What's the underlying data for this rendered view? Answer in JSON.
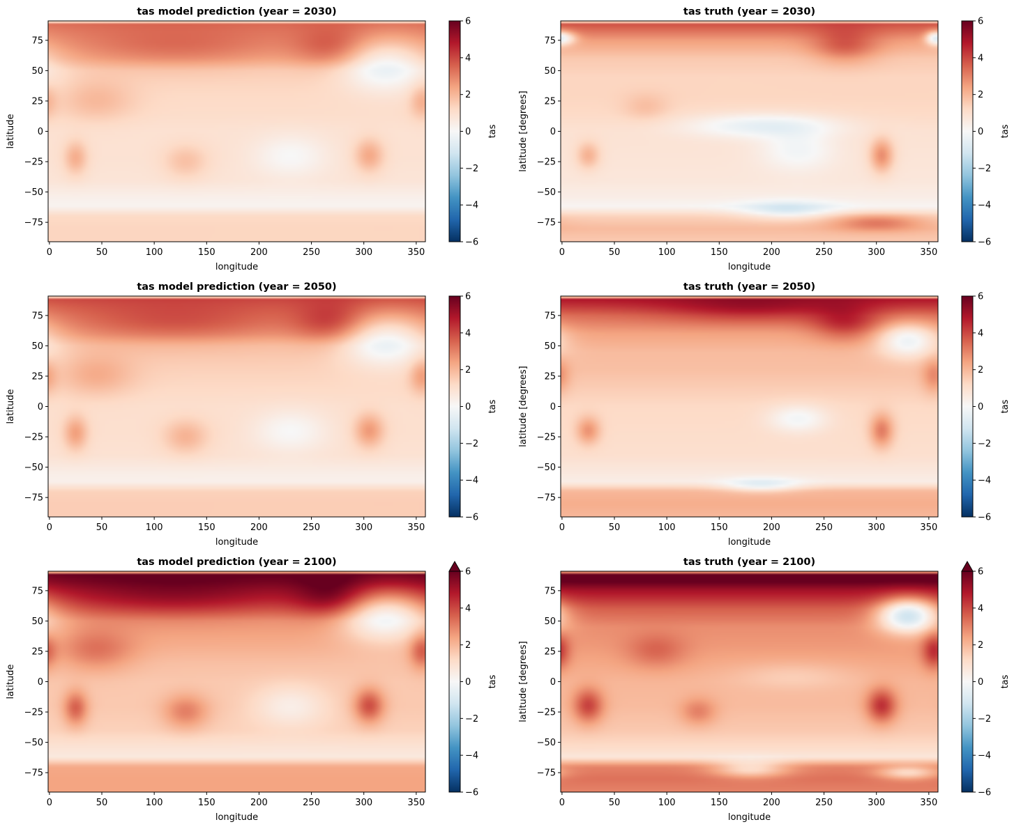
{
  "chart_data": [
    {
      "type": "heatmap",
      "variable": "tas",
      "title": "tas model prediction (year = 2030)",
      "xlabel": "longitude",
      "ylabel": "latitude",
      "xlim": [
        -1.25,
        358.75
      ],
      "ylim": [
        -91,
        91
      ],
      "xticks": [
        0,
        50,
        100,
        150,
        200,
        250,
        300,
        350
      ],
      "yticks": [
        -75,
        -50,
        -25,
        0,
        25,
        50,
        75
      ],
      "colorbar": {
        "label": "tas",
        "range": [
          -6,
          6
        ],
        "ticks": [
          -6,
          -4,
          -2,
          0,
          2,
          4,
          6
        ],
        "colormap": "RdBu_r",
        "extend": "neither"
      },
      "field": {
        "base": 0.9,
        "lat_profile": [
          [
            90,
            3.4
          ],
          [
            82,
            3.0
          ],
          [
            75,
            2.7
          ],
          [
            60,
            2.1
          ],
          [
            50,
            1.4
          ],
          [
            30,
            1.2
          ],
          [
            15,
            1.1
          ],
          [
            0,
            0.9
          ],
          [
            -20,
            0.9
          ],
          [
            -40,
            0.8
          ],
          [
            -55,
            0.3
          ],
          [
            -62,
            0.2
          ],
          [
            -70,
            1.2
          ],
          [
            -80,
            1.3
          ],
          [
            -90,
            1.3
          ]
        ],
        "features": [
          {
            "lon": 120,
            "lat": 68,
            "slon": 70,
            "slat": 12,
            "amp": 0.9
          },
          {
            "lon": 270,
            "lat": 68,
            "slon": 25,
            "slat": 12,
            "amp": 1.2
          },
          {
            "lon": 320,
            "lat": 55,
            "slon": 30,
            "slat": 15,
            "amp": -2.0
          },
          {
            "lon": 25,
            "lat": -22,
            "slon": 8,
            "slat": 10,
            "amp": 1.3
          },
          {
            "lon": 305,
            "lat": -20,
            "slon": 10,
            "slat": 10,
            "amp": 1.4
          },
          {
            "lon": 130,
            "lat": -25,
            "slon": 15,
            "slat": 10,
            "amp": 0.9
          },
          {
            "lon": 45,
            "lat": 25,
            "slon": 25,
            "slat": 12,
            "amp": 0.8
          },
          {
            "lon": 355,
            "lat": 25,
            "slon": 8,
            "slat": 10,
            "amp": 1.0
          },
          {
            "lon": 230,
            "lat": -20,
            "slon": 25,
            "slat": 12,
            "amp": -0.9
          }
        ]
      }
    },
    {
      "type": "heatmap",
      "variable": "tas",
      "title": "tas truth (year = 2030)",
      "xlabel": "longitude",
      "ylabel": "latitude [degrees]",
      "xlim": [
        -1.25,
        358.75
      ],
      "ylim": [
        -91,
        91
      ],
      "xticks": [
        0,
        50,
        100,
        150,
        200,
        250,
        300,
        350
      ],
      "yticks": [
        -75,
        -50,
        -25,
        0,
        25,
        50,
        75
      ],
      "colorbar": {
        "label": "tas",
        "range": [
          -6,
          6
        ],
        "ticks": [
          -6,
          -4,
          -2,
          0,
          2,
          4,
          6
        ],
        "colormap": "RdBu_r",
        "extend": "neither"
      },
      "field": {
        "base": 0.9,
        "lat_profile": [
          [
            90,
            4.0
          ],
          [
            82,
            3.2
          ],
          [
            75,
            2.5
          ],
          [
            60,
            1.6
          ],
          [
            45,
            1.3
          ],
          [
            30,
            1.3
          ],
          [
            15,
            1.2
          ],
          [
            0,
            0.9
          ],
          [
            -20,
            0.8
          ],
          [
            -40,
            0.7
          ],
          [
            -55,
            0.4
          ],
          [
            -62,
            0.1
          ],
          [
            -70,
            1.4
          ],
          [
            -80,
            1.9
          ],
          [
            -90,
            1.6
          ]
        ],
        "features": [
          {
            "lon": 190,
            "lat": 5,
            "slon": 50,
            "slat": 7,
            "amp": -1.5
          },
          {
            "lon": 225,
            "lat": -15,
            "slon": 25,
            "slat": 12,
            "amp": -1.0
          },
          {
            "lon": 215,
            "lat": -65,
            "slon": 30,
            "slat": 5,
            "amp": -1.6
          },
          {
            "lon": 270,
            "lat": 70,
            "slon": 22,
            "slat": 10,
            "amp": 1.5
          },
          {
            "lon": 3,
            "lat": 77,
            "slon": 8,
            "slat": 4,
            "amp": -2.0
          },
          {
            "lon": 355,
            "lat": 77,
            "slon": 6,
            "slat": 4,
            "amp": -2.0
          },
          {
            "lon": 25,
            "lat": -20,
            "slon": 8,
            "slat": 8,
            "amp": 1.3
          },
          {
            "lon": 305,
            "lat": -20,
            "slon": 8,
            "slat": 10,
            "amp": 2.0
          },
          {
            "lon": 80,
            "lat": 20,
            "slon": 15,
            "slat": 8,
            "amp": 0.6
          },
          {
            "lon": 300,
            "lat": -75,
            "slon": 30,
            "slat": 5,
            "amp": 1.5
          }
        ]
      }
    },
    {
      "type": "heatmap",
      "variable": "tas",
      "title": "tas model prediction (year = 2050)",
      "xlabel": "longitude",
      "ylabel": "latitude",
      "xlim": [
        -1.25,
        358.75
      ],
      "ylim": [
        -91,
        91
      ],
      "xticks": [
        0,
        50,
        100,
        150,
        200,
        250,
        300,
        350
      ],
      "yticks": [
        -75,
        -50,
        -25,
        0,
        25,
        50,
        75
      ],
      "colorbar": {
        "label": "tas",
        "range": [
          -6,
          6
        ],
        "ticks": [
          -6,
          -4,
          -2,
          0,
          2,
          4,
          6
        ],
        "colormap": "RdBu_r",
        "extend": "neither"
      },
      "field": {
        "base": 1.0,
        "lat_profile": [
          [
            90,
            4.0
          ],
          [
            82,
            3.5
          ],
          [
            75,
            3.1
          ],
          [
            60,
            2.4
          ],
          [
            50,
            1.7
          ],
          [
            30,
            1.4
          ],
          [
            15,
            1.2
          ],
          [
            0,
            1.0
          ],
          [
            -20,
            1.0
          ],
          [
            -40,
            0.9
          ],
          [
            -55,
            0.4
          ],
          [
            -62,
            0.3
          ],
          [
            -70,
            1.4
          ],
          [
            -80,
            1.5
          ],
          [
            -90,
            1.5
          ]
        ],
        "features": [
          {
            "lon": 120,
            "lat": 68,
            "slon": 70,
            "slat": 12,
            "amp": 1.0
          },
          {
            "lon": 270,
            "lat": 68,
            "slon": 25,
            "slat": 12,
            "amp": 1.4
          },
          {
            "lon": 320,
            "lat": 55,
            "slon": 30,
            "slat": 15,
            "amp": -2.3
          },
          {
            "lon": 25,
            "lat": -22,
            "slon": 8,
            "slat": 10,
            "amp": 1.5
          },
          {
            "lon": 305,
            "lat": -20,
            "slon": 10,
            "slat": 10,
            "amp": 1.6
          },
          {
            "lon": 130,
            "lat": -25,
            "slon": 15,
            "slat": 10,
            "amp": 1.1
          },
          {
            "lon": 45,
            "lat": 25,
            "slon": 25,
            "slat": 12,
            "amp": 0.9
          },
          {
            "lon": 355,
            "lat": 25,
            "slon": 8,
            "slat": 10,
            "amp": 1.2
          },
          {
            "lon": 230,
            "lat": -20,
            "slon": 25,
            "slat": 12,
            "amp": -1.0
          }
        ]
      }
    },
    {
      "type": "heatmap",
      "variable": "tas",
      "title": "tas truth (year = 2050)",
      "xlabel": "longitude",
      "ylabel": "latitude [degrees]",
      "xlim": [
        -1.25,
        358.75
      ],
      "ylim": [
        -91,
        91
      ],
      "xticks": [
        0,
        50,
        100,
        150,
        200,
        250,
        300,
        350
      ],
      "yticks": [
        -75,
        -50,
        -25,
        0,
        25,
        50,
        75
      ],
      "colorbar": {
        "label": "tas",
        "range": [
          -6,
          6
        ],
        "ticks": [
          -6,
          -4,
          -2,
          0,
          2,
          4,
          6
        ],
        "colormap": "RdBu_r",
        "extend": "neither"
      },
      "field": {
        "base": 1.3,
        "lat_profile": [
          [
            90,
            5.0
          ],
          [
            82,
            4.2
          ],
          [
            75,
            3.4
          ],
          [
            60,
            2.4
          ],
          [
            45,
            1.9
          ],
          [
            30,
            1.8
          ],
          [
            15,
            1.5
          ],
          [
            0,
            1.2
          ],
          [
            -20,
            1.1
          ],
          [
            -40,
            1.0
          ],
          [
            -55,
            0.6
          ],
          [
            -62,
            0.4
          ],
          [
            -70,
            2.0
          ],
          [
            -80,
            2.2
          ],
          [
            -90,
            2.0
          ]
        ],
        "features": [
          {
            "lon": 225,
            "lat": -10,
            "slon": 20,
            "slat": 8,
            "amp": -1.3
          },
          {
            "lon": 190,
            "lat": -65,
            "slon": 25,
            "slat": 4,
            "amp": -1.5
          },
          {
            "lon": 330,
            "lat": 55,
            "slon": 20,
            "slat": 10,
            "amp": -2.5
          },
          {
            "lon": 180,
            "lat": 80,
            "slon": 60,
            "slat": 8,
            "amp": 1.0
          },
          {
            "lon": 270,
            "lat": 68,
            "slon": 22,
            "slat": 10,
            "amp": 1.5
          },
          {
            "lon": 25,
            "lat": -20,
            "slon": 8,
            "slat": 8,
            "amp": 1.6
          },
          {
            "lon": 305,
            "lat": -20,
            "slon": 8,
            "slat": 10,
            "amp": 2.0
          },
          {
            "lon": 355,
            "lat": 25,
            "slon": 8,
            "slat": 10,
            "amp": 1.2
          }
        ]
      }
    },
    {
      "type": "heatmap",
      "variable": "tas",
      "title": "tas model prediction (year = 2100)",
      "xlabel": "longitude",
      "ylabel": "latitude",
      "xlim": [
        -1.25,
        358.75
      ],
      "ylim": [
        -91,
        91
      ],
      "xticks": [
        0,
        50,
        100,
        150,
        200,
        250,
        300,
        350
      ],
      "yticks": [
        -75,
        -50,
        -25,
        0,
        25,
        50,
        75
      ],
      "colorbar": {
        "label": "tas",
        "range": [
          -6,
          6
        ],
        "ticks": [
          -6,
          -4,
          -2,
          0,
          2,
          4,
          6
        ],
        "colormap": "RdBu_r",
        "extend": "max"
      },
      "field": {
        "base": 1.6,
        "lat_profile": [
          [
            90,
            6.0
          ],
          [
            82,
            5.5
          ],
          [
            75,
            4.8
          ],
          [
            60,
            3.5
          ],
          [
            50,
            2.6
          ],
          [
            30,
            2.2
          ],
          [
            15,
            1.8
          ],
          [
            0,
            1.6
          ],
          [
            -20,
            1.6
          ],
          [
            -40,
            1.4
          ],
          [
            -55,
            0.8
          ],
          [
            -62,
            0.6
          ],
          [
            -70,
            2.3
          ],
          [
            -80,
            2.4
          ],
          [
            -90,
            2.4
          ]
        ],
        "features": [
          {
            "lon": 120,
            "lat": 68,
            "slon": 70,
            "slat": 12,
            "amp": 1.0
          },
          {
            "lon": 270,
            "lat": 68,
            "slon": 25,
            "slat": 12,
            "amp": 1.5
          },
          {
            "lon": 320,
            "lat": 55,
            "slon": 30,
            "slat": 15,
            "amp": -3.0
          },
          {
            "lon": 25,
            "lat": -22,
            "slon": 8,
            "slat": 10,
            "amp": 2.0
          },
          {
            "lon": 305,
            "lat": -20,
            "slon": 10,
            "slat": 10,
            "amp": 2.3
          },
          {
            "lon": 130,
            "lat": -25,
            "slon": 15,
            "slat": 10,
            "amp": 1.5
          },
          {
            "lon": 45,
            "lat": 25,
            "slon": 25,
            "slat": 12,
            "amp": 1.2
          },
          {
            "lon": 355,
            "lat": 25,
            "slon": 8,
            "slat": 10,
            "amp": 1.6
          },
          {
            "lon": 230,
            "lat": -20,
            "slon": 25,
            "slat": 12,
            "amp": -1.2
          }
        ]
      }
    },
    {
      "type": "heatmap",
      "variable": "tas",
      "title": "tas truth (year = 2100)",
      "xlabel": "longitude",
      "ylabel": "latitude [degrees]",
      "xlim": [
        -1.25,
        358.75
      ],
      "ylim": [
        -91,
        91
      ],
      "xticks": [
        0,
        50,
        100,
        150,
        200,
        250,
        300,
        350
      ],
      "yticks": [
        -75,
        -50,
        -25,
        0,
        25,
        50,
        75
      ],
      "colorbar": {
        "label": "tas",
        "range": [
          -6,
          6
        ],
        "ticks": [
          -6,
          -4,
          -2,
          0,
          2,
          4,
          6
        ],
        "colormap": "RdBu_r",
        "extend": "max"
      },
      "field": {
        "base": 2.0,
        "lat_profile": [
          [
            90,
            6.5
          ],
          [
            82,
            6.0
          ],
          [
            75,
            5.0
          ],
          [
            60,
            3.6
          ],
          [
            45,
            2.8
          ],
          [
            30,
            2.6
          ],
          [
            15,
            2.3
          ],
          [
            0,
            2.0
          ],
          [
            -20,
            1.9
          ],
          [
            -40,
            1.6
          ],
          [
            -55,
            1.1
          ],
          [
            -62,
            0.7
          ],
          [
            -70,
            3.0
          ],
          [
            -80,
            3.3
          ],
          [
            -90,
            3.0
          ]
        ],
        "features": [
          {
            "lon": 330,
            "lat": 55,
            "slon": 20,
            "slat": 10,
            "amp": -4.5
          },
          {
            "lon": 180,
            "lat": -72,
            "slon": 25,
            "slat": 5,
            "amp": -2.0
          },
          {
            "lon": 330,
            "lat": -75,
            "slon": 20,
            "slat": 4,
            "amp": -2.0
          },
          {
            "lon": 25,
            "lat": -20,
            "slon": 10,
            "slat": 10,
            "amp": 2.2
          },
          {
            "lon": 305,
            "lat": -20,
            "slon": 10,
            "slat": 10,
            "amp": 2.5
          },
          {
            "lon": 130,
            "lat": -25,
            "slon": 12,
            "slat": 8,
            "amp": 1.2
          },
          {
            "lon": 355,
            "lat": 25,
            "slon": 8,
            "slat": 10,
            "amp": 2.0
          },
          {
            "lon": 90,
            "lat": 25,
            "slon": 20,
            "slat": 10,
            "amp": 1.0
          },
          {
            "lon": 220,
            "lat": 5,
            "slon": 40,
            "slat": 8,
            "amp": -0.6
          }
        ]
      }
    }
  ]
}
